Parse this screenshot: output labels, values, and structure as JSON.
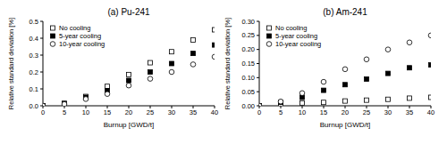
{
  "chart_data": [
    {
      "type": "scatter",
      "title": "(a) Pu-241",
      "x_label": "Burnup [GWD/t]",
      "y_label": "Relative standard deviation [%]",
      "x": [
        0,
        5,
        10,
        15,
        20,
        25,
        30,
        35,
        40
      ],
      "xlim": [
        0,
        40
      ],
      "xticks": [
        0,
        5,
        10,
        15,
        20,
        25,
        30,
        35,
        40
      ],
      "ylim": [
        0,
        0.5
      ],
      "yticks": [
        {
          "value": 0,
          "label": "0.0"
        },
        0.1,
        0.2,
        0.3,
        0.4,
        0.5
      ],
      "legend": "top-left",
      "series": [
        {
          "name": "No cooling",
          "color": "#000000",
          "marker": "square_open",
          "values": [
            0,
            0.015,
            0.055,
            0.115,
            0.185,
            0.255,
            0.32,
            0.39,
            0.45
          ]
        },
        {
          "name": "5-year cooling",
          "color": "#000000",
          "marker": "square",
          "values": [
            0,
            0.01,
            0.05,
            0.09,
            0.15,
            0.2,
            0.25,
            0.31,
            0.36
          ]
        },
        {
          "name": "10-year cooling",
          "color": "#000000",
          "marker": "circle_open",
          "values": [
            0,
            0.01,
            0.04,
            0.07,
            0.12,
            0.16,
            0.2,
            0.245,
            0.29
          ]
        }
      ]
    },
    {
      "type": "scatter",
      "title": "(b) Am-241",
      "x_label": "Burnup [GWD/t]",
      "y_label": "Relative standard deviation [%]",
      "x": [
        0,
        5,
        10,
        15,
        20,
        25,
        30,
        35,
        40
      ],
      "xlim": [
        0,
        40
      ],
      "xticks": [
        0,
        5,
        10,
        15,
        20,
        25,
        30,
        35,
        40
      ],
      "ylim": [
        0,
        0.3
      ],
      "yticks": [
        {
          "value": 0,
          "label": "0.00"
        },
        0.05,
        {
          "value": 0.1,
          "label": "0.10"
        },
        0.15,
        {
          "value": 0.2,
          "label": "0.20"
        },
        0.25,
        {
          "value": 0.3,
          "label": "0.30"
        }
      ],
      "legend": "top-left",
      "series": [
        {
          "name": "No cooling",
          "color": "#000000",
          "marker": "square_open",
          "values": [
            0,
            0.005,
            0.01,
            0.012,
            0.017,
            0.02,
            0.023,
            0.027,
            0.03
          ]
        },
        {
          "name": "5-year cooling",
          "color": "#000000",
          "marker": "square",
          "values": [
            0,
            0.012,
            0.03,
            0.055,
            0.075,
            0.095,
            0.115,
            0.135,
            0.145
          ]
        },
        {
          "name": "10-year cooling",
          "color": "#000000",
          "marker": "circle_open",
          "values": [
            0,
            0.015,
            0.045,
            0.085,
            0.13,
            0.165,
            0.2,
            0.225,
            0.25
          ]
        }
      ]
    }
  ]
}
